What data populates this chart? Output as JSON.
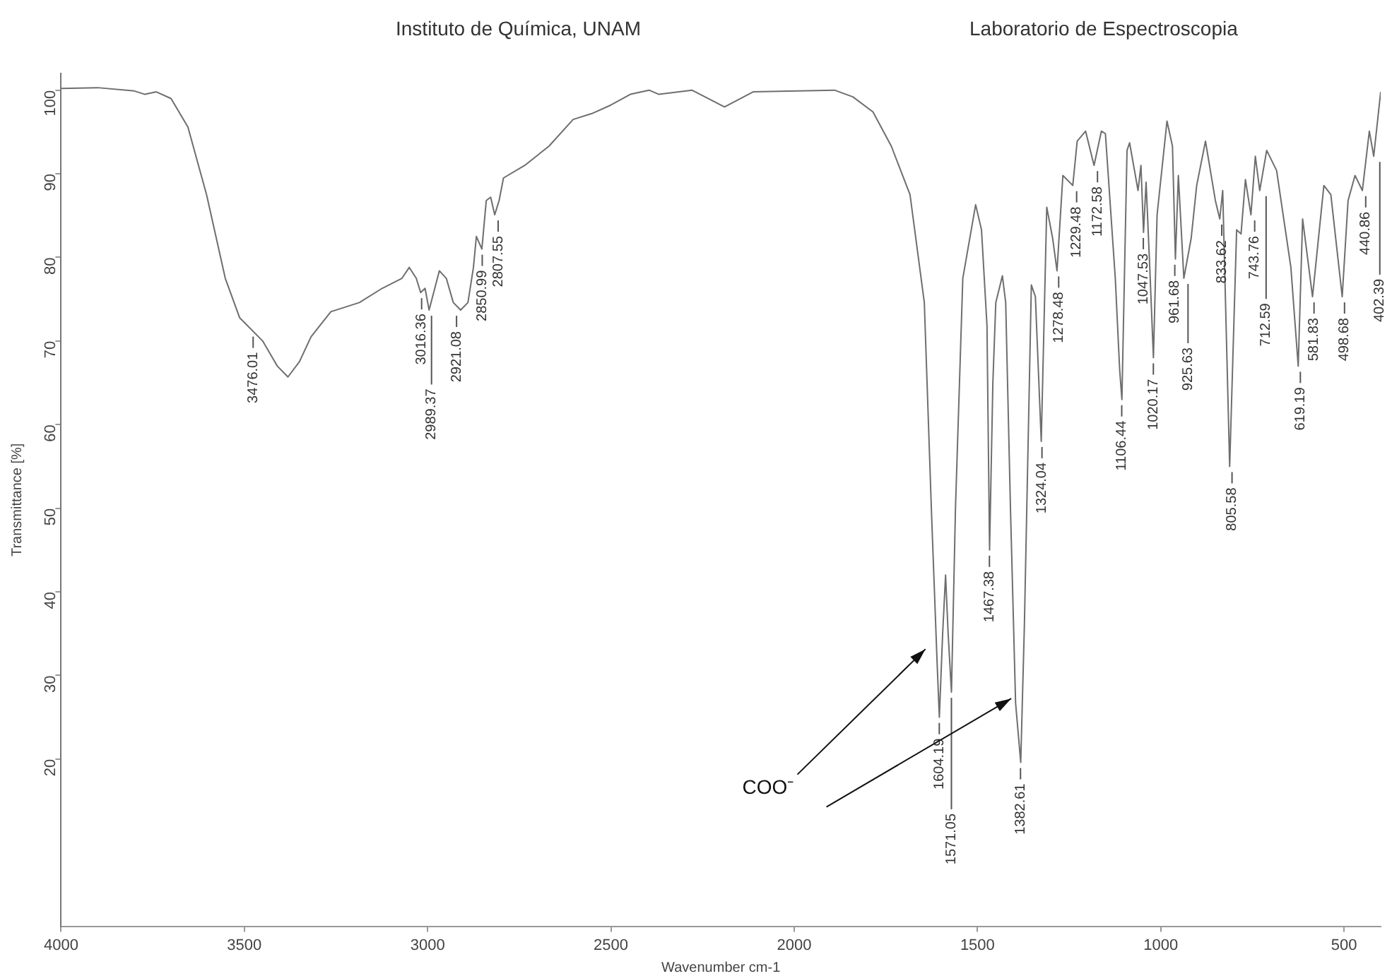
{
  "chart_data": {
    "type": "line",
    "title": "Instituto de Química, UNAM",
    "subtitle": "Laboratorio de Espectroscopia",
    "xlabel": "Wavenumber cm-1",
    "ylabel": "Transmittance [%]",
    "x": [
      4000,
      3900,
      3800,
      3771,
      3740,
      3700,
      3654,
      3603,
      3552,
      3513,
      3450,
      3410,
      3381,
      3350,
      3318,
      3264,
      3186,
      3124,
      3070,
      3050,
      3031,
      3019,
      3007,
      2996,
      2968,
      2949,
      2930,
      2910,
      2890,
      2875,
      2867,
      2852,
      2840,
      2828,
      2817,
      2805,
      2793,
      2735,
      2669,
      2603,
      2552,
      2501,
      2447,
      2396,
      2369,
      2279,
      2190,
      2112,
      1890,
      1840,
      1785,
      1735,
      1684,
      1645,
      1625,
      1610,
      1604,
      1595,
      1587,
      1580,
      1571,
      1560,
      1540,
      1505,
      1489,
      1474,
      1467,
      1458,
      1450,
      1432,
      1423,
      1410,
      1396,
      1382,
      1372,
      1353,
      1342,
      1326,
      1311,
      1295,
      1283,
      1267,
      1240,
      1228,
      1205,
      1182,
      1162,
      1151,
      1124,
      1112,
      1106,
      1092,
      1085,
      1062,
      1054,
      1047,
      1040,
      1030,
      1020,
      1010,
      983,
      968,
      960,
      952,
      937,
      917,
      902,
      878,
      851,
      839,
      831,
      812,
      793,
      781,
      769,
      754,
      742,
      730,
      711,
      684,
      645,
      625,
      613,
      586,
      555,
      536,
      505,
      489,
      470,
      450,
      431,
      419,
      400
    ],
    "values": [
      100.2,
      100.3,
      99.9,
      99.5,
      99.8,
      99,
      95.6,
      87.5,
      77.5,
      72.8,
      70,
      67,
      65.7,
      67.5,
      70.5,
      73.5,
      74.6,
      76.3,
      77.5,
      78.8,
      77.5,
      75.8,
      76.3,
      73.7,
      78.4,
      77.5,
      74.6,
      73.7,
      74.6,
      78.8,
      82.5,
      81,
      86.8,
      87.2,
      85.1,
      86.8,
      89.5,
      91,
      93.3,
      96.5,
      97.2,
      98.2,
      99.5,
      100,
      99.5,
      100,
      98,
      99.8,
      100,
      99.2,
      97.4,
      93.3,
      87.5,
      74.6,
      49,
      31.4,
      25,
      35,
      42,
      35,
      28,
      50,
      77.5,
      86.3,
      83.3,
      71.8,
      45,
      65,
      74.6,
      77.8,
      74.6,
      50,
      26.7,
      19.6,
      36,
      76.7,
      75.3,
      58,
      86,
      82.3,
      78.4,
      89.8,
      88.6,
      93.9,
      95.1,
      91,
      95.1,
      94.8,
      77.5,
      66.5,
      63,
      92.8,
      93.7,
      88,
      91,
      83,
      89,
      78.8,
      68,
      85.1,
      96.3,
      93.3,
      79.8,
      89.8,
      77.5,
      82.3,
      88.6,
      93.9,
      86.8,
      84.6,
      88,
      55,
      83.3,
      82.8,
      89.3,
      85.1,
      92.1,
      88,
      92.8,
      90.4,
      78.8,
      67,
      84.6,
      75.3,
      88.6,
      87.5,
      75.3,
      86.8,
      89.8,
      88,
      95.1,
      92.1,
      99.8
    ],
    "color": "#6e6e6e",
    "marker": "none",
    "line_style": "solid",
    "xlim": [
      4000,
      400
    ],
    "xticks": [
      4000,
      3500,
      3000,
      2500,
      2000,
      1500,
      1000,
      500
    ],
    "ylim": [
      0,
      102
    ],
    "yticks": [
      20,
      30,
      40,
      50,
      60,
      70,
      80,
      90,
      100
    ],
    "grid": false,
    "annotations": [
      {
        "text": "3476.01",
        "x": 3476.01,
        "y": 71.2
      },
      {
        "text": "3016.36",
        "x": 3016.36,
        "y": 75.8
      },
      {
        "text": "2989.37",
        "x": 2989.37,
        "y": 73.7
      },
      {
        "text": "2921.08",
        "x": 2921.08,
        "y": 73.7
      },
      {
        "text": "2850.99",
        "x": 2850.99,
        "y": 81
      },
      {
        "text": "2807.55",
        "x": 2807.55,
        "y": 85.1
      },
      {
        "text": "1604.19",
        "x": 1604.19,
        "y": 25
      },
      {
        "text": "1571.05",
        "x": 1571.05,
        "y": 28
      },
      {
        "text": "1467.38",
        "x": 1467.38,
        "y": 45
      },
      {
        "text": "1382.61",
        "x": 1382.61,
        "y": 19.6
      },
      {
        "text": "1324.04",
        "x": 1324.04,
        "y": 58
      },
      {
        "text": "1278.48",
        "x": 1278.48,
        "y": 78.4
      },
      {
        "text": "1229.48",
        "x": 1229.48,
        "y": 88.6
      },
      {
        "text": "1172.58",
        "x": 1172.58,
        "y": 91
      },
      {
        "text": "1106.44",
        "x": 1106.44,
        "y": 63
      },
      {
        "text": "1047.53",
        "x": 1047.53,
        "y": 83
      },
      {
        "text": "1020.17",
        "x": 1020.17,
        "y": 68
      },
      {
        "text": "961.68",
        "x": 961.68,
        "y": 79.8
      },
      {
        "text": "925.63",
        "x": 925.63,
        "y": 77.5
      },
      {
        "text": "833.62",
        "x": 833.62,
        "y": 84.6
      },
      {
        "text": "805.58",
        "x": 805.58,
        "y": 55
      },
      {
        "text": "743.76",
        "x": 743.76,
        "y": 85.1
      },
      {
        "text": "712.59",
        "x": 712.59,
        "y": 88
      },
      {
        "text": "619.19",
        "x": 619.19,
        "y": 67
      },
      {
        "text": "581.83",
        "x": 581.83,
        "y": 75.3
      },
      {
        "text": "498.68",
        "x": 498.68,
        "y": 75.3
      },
      {
        "text": "440.86",
        "x": 440.86,
        "y": 88
      },
      {
        "text": "402.39",
        "x": 402.39,
        "y": 92.1
      },
      "COO⁻"
    ]
  }
}
